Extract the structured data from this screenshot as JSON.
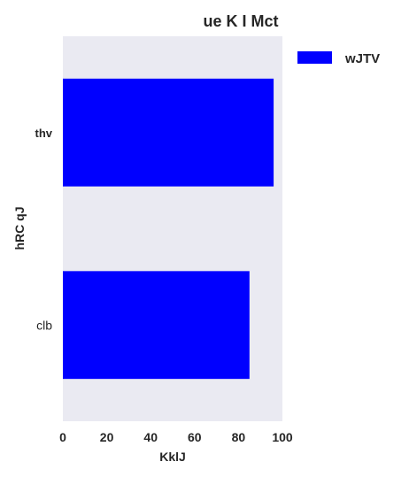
{
  "chart_data": {
    "type": "bar",
    "orientation": "horizontal",
    "title": "ue K I Mct",
    "xlabel": "KklJ",
    "ylabel": "hRC qJ",
    "categories": [
      "thv",
      "clb"
    ],
    "series": [
      {
        "name": "wJTV",
        "values": [
          96,
          85
        ],
        "color": "#0000ff"
      }
    ],
    "xlim": [
      0,
      100
    ],
    "xticks": [
      0,
      20,
      40,
      60,
      80,
      100
    ],
    "grid": false,
    "legend": "outside-top-right",
    "background_color": "#eaeaf2"
  }
}
